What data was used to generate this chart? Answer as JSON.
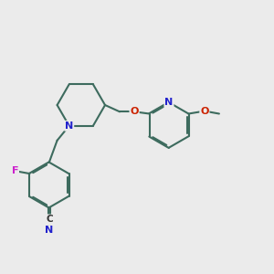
{
  "background_color": "#ebebeb",
  "bond_color": "#3d6b5e",
  "bond_width": 1.5,
  "dbo": 0.025,
  "atom_colors": {
    "N": "#2222cc",
    "O": "#cc2200",
    "F": "#cc22cc"
  }
}
